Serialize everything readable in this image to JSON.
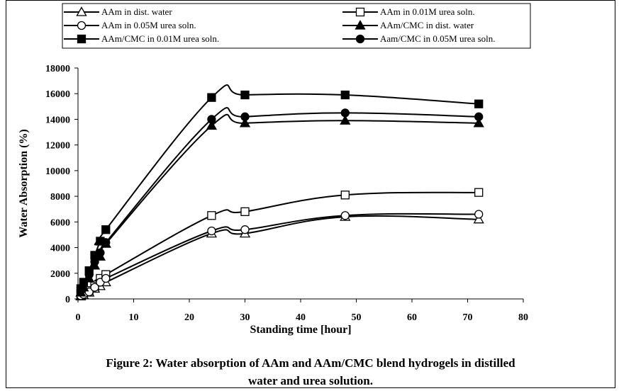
{
  "chart_data": {
    "type": "line",
    "xlabel": "Standing time [hour]",
    "ylabel": "Water Absorption (%)",
    "xlim": [
      0,
      80
    ],
    "ylim": [
      0,
      18000
    ],
    "x_ticks": [
      "0",
      "10",
      "20",
      "30",
      "40",
      "50",
      "60",
      "70",
      "80"
    ],
    "y_ticks": [
      "0",
      "2000",
      "4000",
      "6000",
      "8000",
      "10000",
      "12000",
      "14000",
      "16000",
      "18000"
    ],
    "grid": false,
    "legend_position": "top",
    "series": [
      {
        "name": "AAm in dist. water",
        "marker": "triangle-open",
        "x": [
          0.5,
          1,
          2,
          3,
          4,
          5,
          24,
          30,
          48,
          72
        ],
        "y": [
          200,
          300,
          500,
          800,
          1000,
          1300,
          5100,
          5100,
          6400,
          6200
        ]
      },
      {
        "name": "AAm in 0.01M urea soln.",
        "marker": "square-open",
        "x": [
          0.5,
          1,
          2,
          3,
          4,
          5,
          24,
          30,
          48,
          72
        ],
        "y": [
          300,
          450,
          650,
          1000,
          1600,
          1900,
          6500,
          6800,
          8100,
          8300
        ]
      },
      {
        "name": "AAm in 0.05M urea soln.",
        "marker": "circle-open",
        "x": [
          0.5,
          1,
          2,
          3,
          4,
          5,
          24,
          30,
          48,
          72
        ],
        "y": [
          250,
          350,
          550,
          900,
          1300,
          1600,
          5300,
          5400,
          6500,
          6600
        ]
      },
      {
        "name": "AAm/CMC in dist. water",
        "marker": "triangle-filled",
        "x": [
          0.5,
          1,
          2,
          3,
          4,
          5,
          24,
          30,
          48,
          72
        ],
        "y": [
          500,
          900,
          1600,
          2600,
          3300,
          4300,
          13500,
          13700,
          13900,
          13700
        ]
      },
      {
        "name": "AAm/CMC in 0.01M urea soln.",
        "marker": "square-filled",
        "x": [
          0.5,
          1,
          2,
          3,
          4,
          5,
          24,
          30,
          48,
          72
        ],
        "y": [
          800,
          1300,
          2200,
          3400,
          4500,
          5400,
          15700,
          15900,
          15900,
          15200
        ]
      },
      {
        "name": "Aam/CMC in 0.05M urea soln.",
        "marker": "circle-filled",
        "x": [
          0.5,
          1,
          2,
          3,
          4,
          5,
          24,
          30,
          48,
          72
        ],
        "y": [
          700,
          1100,
          1900,
          2900,
          3600,
          4400,
          14000,
          14200,
          14500,
          14200
        ]
      }
    ]
  },
  "caption": {
    "line1": "Figure 2: Water absorption of AAm and AAm/CMC blend hydrogels in distilled",
    "line2": "water and  urea solution."
  }
}
